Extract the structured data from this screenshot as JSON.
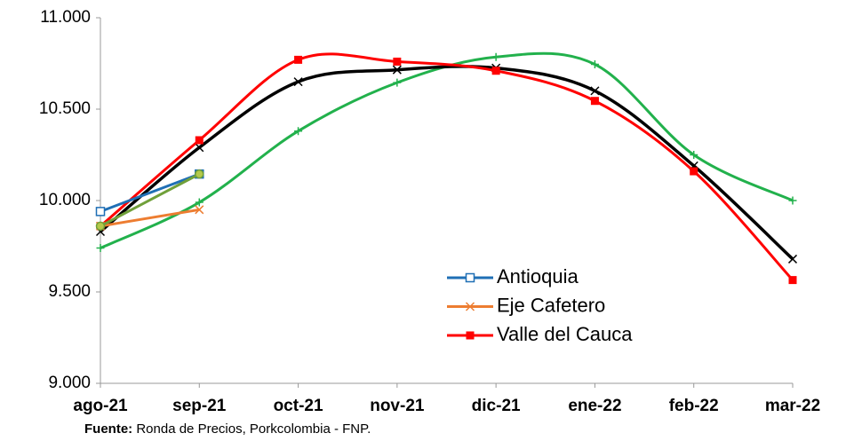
{
  "chart_data": {
    "type": "line",
    "categories": [
      "ago-21",
      "sep-21",
      "oct-21",
      "nov-21",
      "dic-21",
      "ene-22",
      "feb-22",
      "mar-22"
    ],
    "ylim": [
      9000,
      11000
    ],
    "yticks": [
      {
        "value": 9000,
        "label": "9.000"
      },
      {
        "value": 9500,
        "label": "9.500"
      },
      {
        "value": 10000,
        "label": "10.000"
      },
      {
        "value": 10500,
        "label": "10.500"
      },
      {
        "value": 11000,
        "label": "11.000"
      }
    ],
    "smooth": true,
    "grid": false,
    "series": [
      {
        "color": "#22b14c",
        "marker": "plus",
        "values": [
          9740,
          9990,
          10380,
          10645,
          10785,
          10745,
          10250,
          10000
        ]
      },
      {
        "color": "#000000",
        "marker": "x",
        "values": [
          9830,
          10290,
          10650,
          10715,
          10725,
          10600,
          10190,
          9680
        ]
      },
      {
        "name": "Valle del Cauca",
        "color": "#ff0000",
        "marker": "square",
        "values": [
          9860,
          10330,
          10770,
          10760,
          10710,
          10545,
          10160,
          9565
        ]
      },
      {
        "name": "Antioquia",
        "color": "#1f6fb5",
        "marker": "square-open",
        "values": [
          9940,
          10145,
          null,
          null,
          null,
          null,
          null,
          null
        ]
      },
      {
        "name": "Eje Cafetero",
        "color": "#ed7d31",
        "marker": "x",
        "values": [
          9860,
          9950,
          null,
          null,
          null,
          null,
          null,
          null
        ]
      },
      {
        "color": "#70a03a",
        "marker": "circle",
        "values": [
          9860,
          10145,
          null,
          null,
          null,
          null,
          null,
          null
        ]
      }
    ],
    "legend_order": [
      3,
      4,
      2
    ],
    "source_label": "Fuente:",
    "source": "Ronda de Precios, Porkcolombia  - FNP."
  }
}
